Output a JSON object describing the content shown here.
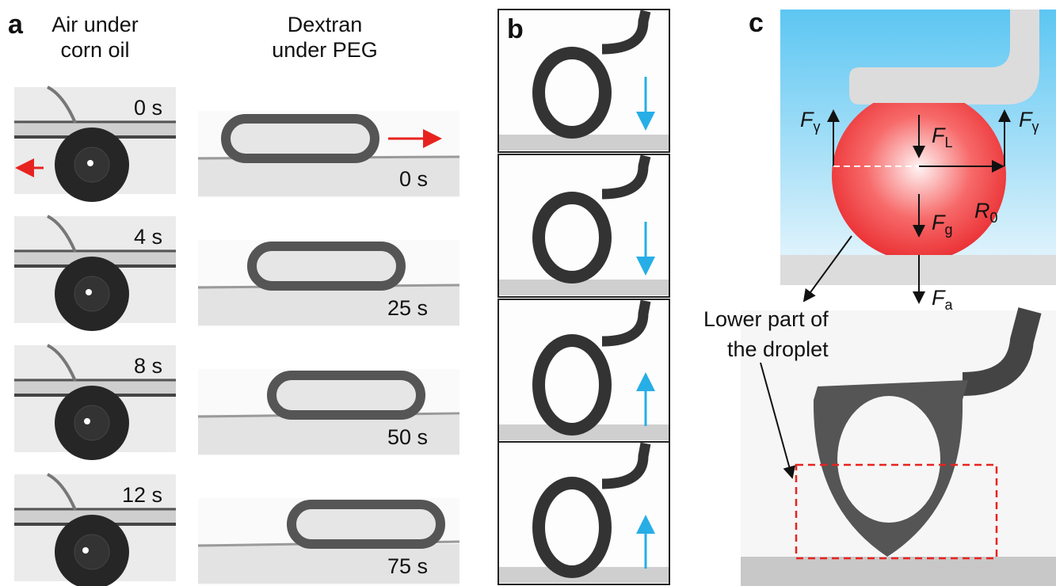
{
  "panels": [
    {
      "label": "a",
      "columns": [
        {
          "title": [
            "Air under",
            "corn oil"
          ],
          "times": [
            "0 s",
            "4 s",
            "8 s",
            "12 s"
          ]
        },
        {
          "title": [
            "Dextran",
            "under PEG"
          ],
          "times": [
            "0 s",
            "25 s",
            "50 s",
            "75 s"
          ]
        }
      ]
    },
    {
      "label": "b"
    },
    {
      "label": "c",
      "forces": [
        {
          "symbol": "F",
          "subscript": "γ"
        },
        {
          "symbol": "F",
          "subscript": "L"
        },
        {
          "symbol": "F",
          "subscript": "γ"
        },
        {
          "symbol": "R",
          "subscript": "0"
        },
        {
          "symbol": "F",
          "subscript": "g"
        },
        {
          "symbol": "F",
          "subscript": "a"
        }
      ],
      "annotation": [
        "Lower part of",
        "the droplet"
      ]
    }
  ]
}
